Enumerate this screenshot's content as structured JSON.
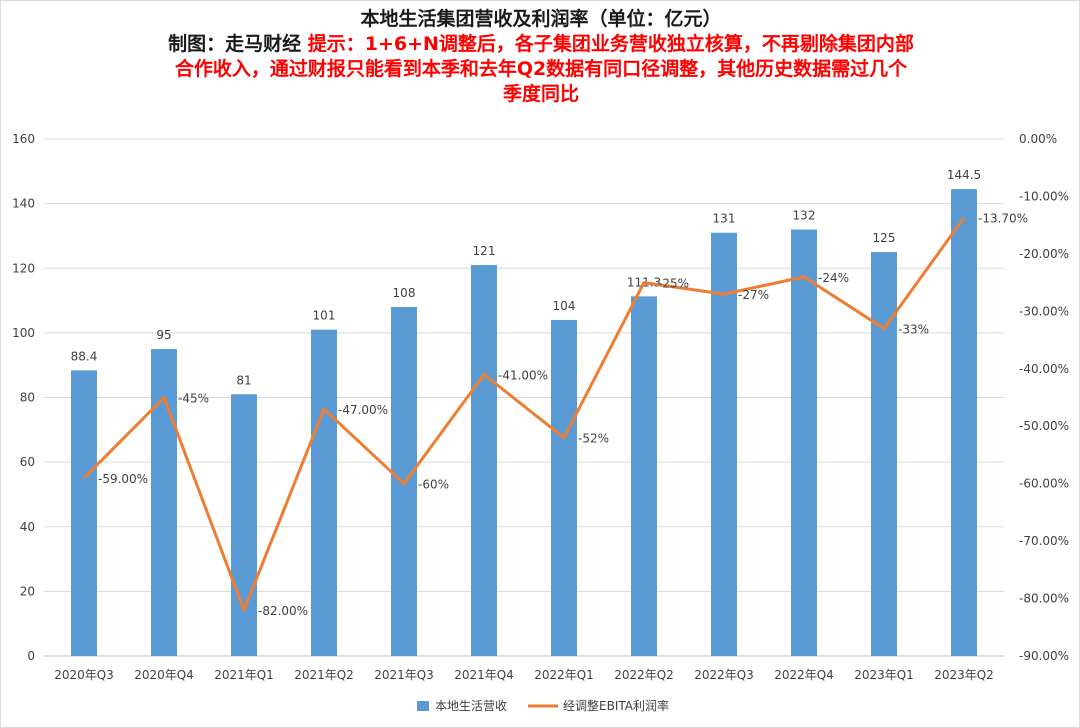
{
  "title": "本地生活集团营收及利润率（单位：亿元）",
  "maker": "制图：走马财经",
  "notice_line1": "提示：1+6+N调整后，各子集团业务营收独立核算，不再剔除集团内部",
  "notice_line2": "合作收入，通过财报只能看到本季和去年Q2数据有同口径调整，其他历史数据需过几个",
  "notice_line3": "季度同比",
  "colors": {
    "bar": "#5b9bd5",
    "line": "#ed7d31",
    "grid": "#d9d9d9",
    "text": "#404040",
    "notice": "#ff0000"
  },
  "chart_data": {
    "type": "bar",
    "categories": [
      "2020年Q3",
      "2020年Q4",
      "2021年Q1",
      "2021年Q2",
      "2021年Q3",
      "2021年Q4",
      "2022年Q1",
      "2022年Q2",
      "2022年Q3",
      "2022年Q4",
      "2023年Q1",
      "2023年Q2"
    ],
    "series": [
      {
        "name": "本地生活营收",
        "type": "bar",
        "axis": "left",
        "values": [
          88.4,
          95,
          81,
          101,
          108,
          121,
          104,
          111.3,
          131,
          132,
          125,
          144.5
        ],
        "labels": [
          "88.4",
          "95",
          "81",
          "101",
          "108",
          "121",
          "104",
          "111.3",
          "131",
          "132",
          "125",
          "144.5"
        ]
      },
      {
        "name": "经调整EBITA利润率",
        "type": "line",
        "axis": "right",
        "values": [
          -59,
          -45,
          -82,
          -47,
          -60,
          -41,
          -52,
          -25,
          -27,
          -24,
          -33,
          -13.7
        ],
        "labels": [
          "-59.00%",
          "-45%",
          "-82.00%",
          "-47.00%",
          "-60%",
          "-41.00%",
          "-52%",
          "-25%",
          "-27%",
          "-24%",
          "-33%",
          "-13.70%"
        ]
      }
    ],
    "y_left": {
      "min": 0,
      "max": 160,
      "ticks": [
        "0",
        "20",
        "40",
        "60",
        "80",
        "100",
        "120",
        "140",
        "160"
      ]
    },
    "y_right": {
      "min": -90,
      "max": 0,
      "ticks": [
        "0.00%",
        "-10.00%",
        "-20.00%",
        "-30.00%",
        "-40.00%",
        "-50.00%",
        "-60.00%",
        "-70.00%",
        "-80.00%",
        "-90.00%"
      ]
    },
    "grid": true,
    "legend_position": "bottom"
  }
}
